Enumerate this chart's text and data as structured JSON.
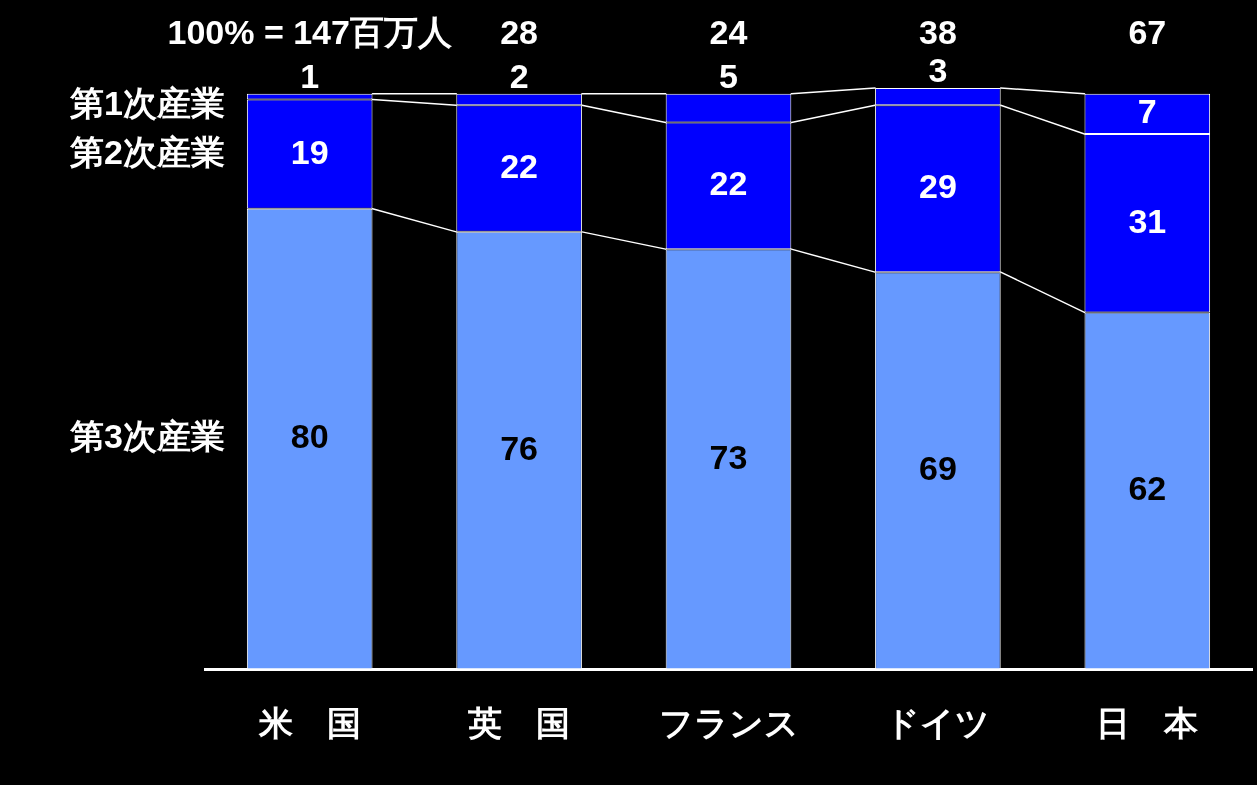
{
  "chart_data": {
    "type": "bar",
    "stacked": true,
    "categories": [
      "米　国",
      "英　国",
      "フランス",
      "ドイツ",
      "日　本"
    ],
    "series": [
      {
        "name": "第3次産業",
        "color": "#6699ff",
        "values": [
          80,
          76,
          73,
          69,
          62
        ]
      },
      {
        "name": "第2次産業",
        "color": "#0000ff",
        "values": [
          19,
          22,
          22,
          29,
          31
        ]
      },
      {
        "name": "第1次産業",
        "color": "#0000ff",
        "values": [
          1,
          2,
          5,
          3,
          7
        ]
      }
    ],
    "annotations": [
      "100% = 147百万人",
      "28",
      "24",
      "38",
      "67"
    ],
    "data_labels": true,
    "ylim": [
      0,
      101
    ],
    "tick_labels": "x"
  }
}
